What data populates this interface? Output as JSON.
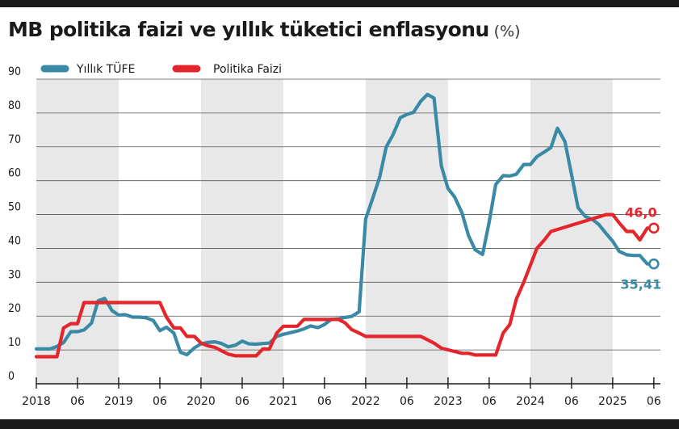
{
  "title": "MB politika faizi ve yıllık tüketici enflasyonu",
  "unit": "(%)",
  "chart_data": {
    "type": "line",
    "title": "MB politika faizi ve yıllık tüketici enflasyonu",
    "unit": "(%)",
    "ylim": [
      0,
      90
    ],
    "yticks": [
      0,
      10,
      20,
      30,
      40,
      50,
      60,
      70,
      80,
      90
    ],
    "xlim": [
      2018.0,
      2025.58
    ],
    "xtick_labels": [
      "2018",
      "06",
      "2019",
      "06",
      "2020",
      "06",
      "2021",
      "06",
      "2022",
      "06",
      "2023",
      "06",
      "2024",
      "06",
      "2025",
      "06"
    ],
    "grid": true,
    "legend_position": "top-left",
    "series": [
      {
        "name": "Yıllık TÜFE",
        "color": "#3a8aa6",
        "end_label": "35,41",
        "x": [
          2018.0,
          2018.17,
          2018.25,
          2018.33,
          2018.42,
          2018.5,
          2018.58,
          2018.67,
          2018.75,
          2018.83,
          2018.92,
          2019.0,
          2019.08,
          2019.17,
          2019.25,
          2019.33,
          2019.42,
          2019.5,
          2019.58,
          2019.67,
          2019.75,
          2019.83,
          2019.92,
          2020.0,
          2020.08,
          2020.17,
          2020.25,
          2020.33,
          2020.42,
          2020.5,
          2020.58,
          2020.67,
          2020.75,
          2020.83,
          2020.92,
          2021.0,
          2021.17,
          2021.25,
          2021.33,
          2021.42,
          2021.5,
          2021.58,
          2021.67,
          2021.75,
          2021.83,
          2021.92,
          2022.0,
          2022.08,
          2022.17,
          2022.25,
          2022.33,
          2022.42,
          2022.5,
          2022.58,
          2022.67,
          2022.75,
          2022.83,
          2022.92,
          2023.0,
          2023.08,
          2023.17,
          2023.25,
          2023.33,
          2023.42,
          2023.5,
          2023.58,
          2023.67,
          2023.75,
          2023.83,
          2023.92,
          2024.0,
          2024.08,
          2024.17,
          2024.25,
          2024.33,
          2024.42,
          2024.5,
          2024.58,
          2024.67,
          2024.75,
          2024.83,
          2024.92,
          2025.0,
          2025.08,
          2025.17,
          2025.25,
          2025.33,
          2025.42,
          2025.5
        ],
        "y": [
          10.3,
          10.3,
          11.0,
          12.2,
          15.4,
          15.4,
          15.9,
          17.9,
          24.5,
          25.2,
          21.6,
          20.3,
          20.4,
          19.7,
          19.7,
          19.5,
          18.7,
          15.7,
          16.7,
          15.0,
          9.3,
          8.6,
          10.6,
          11.8,
          12.2,
          12.4,
          11.9,
          10.9,
          11.4,
          12.6,
          11.8,
          11.7,
          11.9,
          12.0,
          14.0,
          14.6,
          15.6,
          16.2,
          17.1,
          16.6,
          17.5,
          19.0,
          19.2,
          19.6,
          19.9,
          21.3,
          48.7,
          54.4,
          61.1,
          70.0,
          73.5,
          78.6,
          79.6,
          80.2,
          83.5,
          85.5,
          84.4,
          64.3,
          57.7,
          55.2,
          50.5,
          43.7,
          39.6,
          38.2,
          47.8,
          58.9,
          61.5,
          61.4,
          61.9,
          64.8,
          64.8,
          67.1,
          68.5,
          69.8,
          75.5,
          71.6,
          61.8,
          52.0,
          49.4,
          48.6,
          47.1,
          44.4,
          42.1,
          39.1,
          38.1,
          37.9,
          37.9,
          35.4,
          35.41
        ]
      },
      {
        "name": "Politika Faizi",
        "color": "#e3262b",
        "end_label": "46,0",
        "x": [
          2018.0,
          2018.25,
          2018.33,
          2018.42,
          2018.5,
          2018.58,
          2018.67,
          2019.5,
          2019.58,
          2019.67,
          2019.75,
          2019.83,
          2019.92,
          2020.0,
          2020.08,
          2020.17,
          2020.25,
          2020.33,
          2020.42,
          2020.58,
          2020.67,
          2020.75,
          2020.83,
          2020.92,
          2021.0,
          2021.17,
          2021.25,
          2021.67,
          2021.75,
          2021.83,
          2021.92,
          2022.0,
          2022.5,
          2022.67,
          2022.75,
          2022.83,
          2022.92,
          2023.17,
          2023.25,
          2023.33,
          2023.42,
          2023.5,
          2023.58,
          2023.67,
          2023.75,
          2023.83,
          2023.92,
          2024.0,
          2024.08,
          2024.17,
          2024.25,
          2024.92,
          2025.0,
          2025.08,
          2025.17,
          2025.25,
          2025.33,
          2025.42,
          2025.5
        ],
        "y": [
          8.0,
          8.0,
          16.5,
          17.75,
          17.75,
          24.0,
          24.0,
          24.0,
          19.75,
          16.5,
          16.5,
          14.0,
          14.0,
          12.0,
          11.25,
          10.75,
          9.75,
          8.75,
          8.25,
          8.25,
          8.25,
          10.25,
          10.25,
          15.0,
          17.0,
          17.0,
          19.0,
          19.0,
          18.0,
          16.0,
          15.0,
          14.0,
          14.0,
          14.0,
          13.0,
          12.0,
          10.5,
          9.0,
          9.0,
          8.5,
          8.5,
          8.5,
          8.5,
          15.0,
          17.5,
          25.0,
          30.0,
          35.0,
          40.0,
          42.5,
          45.0,
          50.0,
          50.0,
          47.5,
          45.0,
          45.0,
          42.5,
          46.0,
          46.0
        ]
      }
    ]
  }
}
